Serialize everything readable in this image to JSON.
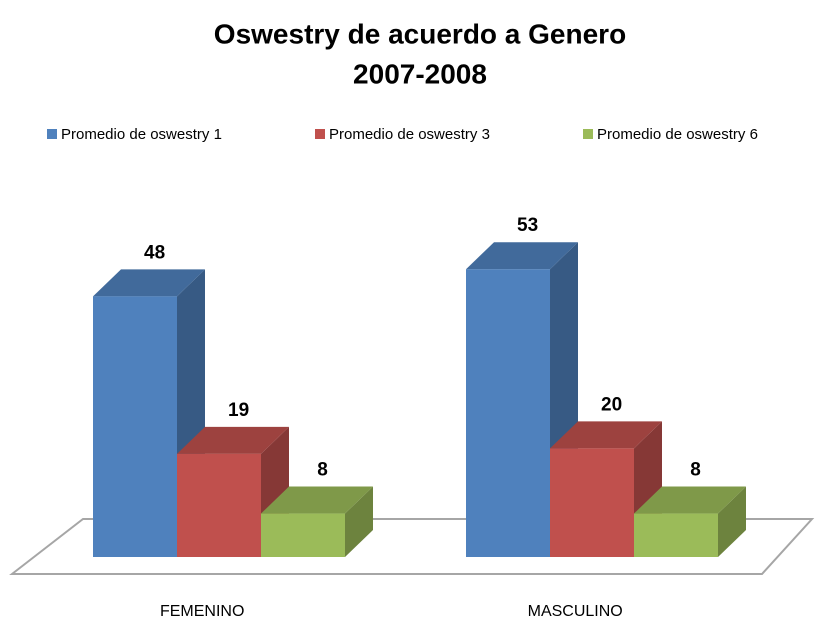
{
  "chart_data": {
    "type": "bar3d",
    "title": "Oswestry de acuerdo a Genero",
    "subtitle": "2007-2008",
    "categories": [
      "FEMENINO",
      "MASCULINO"
    ],
    "series": [
      {
        "name": "Promedio de oswestry 1",
        "color": "#4f81bd",
        "values": [
          48,
          53
        ]
      },
      {
        "name": "Promedio de oswestry 3",
        "color": "#c0504d",
        "values": [
          19,
          20
        ]
      },
      {
        "name": "Promedio de oswestry 6",
        "color": "#9bbb59",
        "values": [
          8,
          8
        ]
      }
    ]
  }
}
